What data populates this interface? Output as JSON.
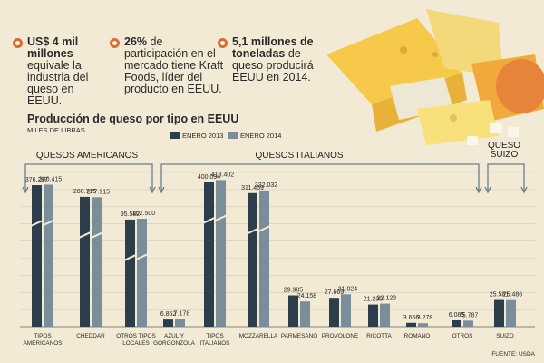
{
  "facts": [
    {
      "bold": "US$ 4 mil millones",
      "text": " equivale la industria del queso en EEUU."
    },
    {
      "bold": "26%",
      "text": " de participación en el mercado tiene Kraft Foods, líder del producto en EEUU."
    },
    {
      "bold": "5,1 millones de toneladas",
      "text": " de queso producirá EEUU en 2014."
    }
  ],
  "colors": {
    "series_2013": "#2c3e4c",
    "series_2014": "#7a8d9b",
    "bullet": "#e06a2a",
    "background": "#f3ead6"
  },
  "source": "FUENTE: USDA",
  "chart_data": {
    "type": "bar",
    "title": "Producción de queso por tipo en EEUU",
    "subtitle": "MILES DE LIBRAS",
    "series": [
      {
        "name": "ENERO 2013",
        "values": [
          376297,
          280715,
          95582,
          6852,
          400094,
          311459,
          29985,
          27669,
          21230,
          3666,
          6085,
          25581
        ],
        "labels": [
          "376.297",
          "280.715",
          "95.582",
          "6.852",
          "400.094",
          "311.459",
          "29.985",
          "27.669",
          "21.230",
          "3.666",
          "6.085",
          "25.581"
        ]
      },
      {
        "name": "ENERO 2014",
        "values": [
          380415,
          277915,
          102500,
          7178,
          418402,
          332032,
          24158,
          31024,
          22123,
          3278,
          5787,
          25486
        ],
        "labels": [
          "380.415",
          "277.915",
          "102.500",
          "7.178",
          "418.402",
          "332.032",
          "24.158",
          "31.024",
          "22.123",
          "3.278",
          "5.787",
          "25.486"
        ]
      }
    ],
    "categories": [
      [
        "TIPOS",
        "AMERICANOS"
      ],
      [
        "CHEDDAR"
      ],
      [
        "OTROS TIPOS",
        "LOCALES"
      ],
      [
        "AZUL Y",
        "GORGONZOLA"
      ],
      [
        "TIPOS",
        "ITALIANOS"
      ],
      [
        "MOZZARELLA"
      ],
      [
        "PARMESANO"
      ],
      [
        "PROVOLONE"
      ],
      [
        "RICOTTA"
      ],
      [
        "ROMANO"
      ],
      [
        "OTROS"
      ],
      [
        "SUIZO"
      ]
    ],
    "broken_axis": true,
    "groups": [
      {
        "label": "QUESOS AMERICANOS",
        "from": 0,
        "to": 3
      },
      {
        "label": "QUESOS ITALIANOS",
        "from": 4,
        "to": 10
      },
      {
        "label": "QUESO SUIZO",
        "from": 11,
        "to": 11
      }
    ]
  }
}
